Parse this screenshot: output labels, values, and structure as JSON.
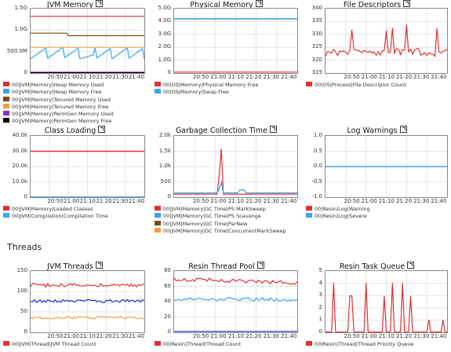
{
  "section_title": "Threads",
  "colors": {
    "red": "#e03131",
    "blue": "#38a6e8",
    "darkblue": "#1f25d6",
    "brown": "#7a4a12",
    "orange": "#f0a040",
    "purple": "#8b2fc4",
    "black": "#000000"
  },
  "icons": {
    "popout": "popout-icon"
  },
  "chart_data": [
    {
      "type": "line",
      "title": "JVM Memory",
      "y_ticks": [
        "1.5G",
        "1.0G",
        "500.0M",
        "0"
      ],
      "x_ticks": [
        "20:50",
        "21:00",
        "21:10",
        "21:20",
        "21:30",
        "21:40"
      ],
      "legend": [
        "00|JVM|Memory|Heap Memory Used",
        "00|JVM|Memory|Heap Memory Free",
        "00|JVM|Memory|Tenured Memory Used",
        "00|JVM|Memory|Tenured Memory Free",
        "00|JVM|Memory|PermGen Memory Used",
        "00|JVM|Memory|PermGen Memory Free"
      ]
    },
    {
      "type": "line",
      "title": "Physical Memory",
      "y_ticks": [
        "5.0G",
        "4.0G",
        "3.0G",
        "2.0G",
        "1.0G",
        "0"
      ],
      "x_ticks": [
        "20:50",
        "21:00",
        "21:10",
        "21:20",
        "21:30",
        "21:40"
      ],
      "legend": [
        "00|OS|Memory|Physical Memory Free",
        "00|OS|Memory|Swap Free"
      ]
    },
    {
      "type": "line",
      "title": "File Descriptors",
      "y_ticks": [
        "340",
        "335",
        "330",
        "325",
        "320",
        "315"
      ],
      "x_ticks": [
        "20:50",
        "21:00",
        "21:10",
        "21:20",
        "21:30",
        "21:40"
      ],
      "legend": [
        "00|OS|Process|File Descriptor Count"
      ]
    },
    {
      "type": "line",
      "title": "Class Loading",
      "y_ticks": [
        "40.0k",
        "30.0k",
        "20.0k",
        "10.0k",
        "0"
      ],
      "x_ticks": [
        "20:50",
        "21:00",
        "21:10",
        "21:20",
        "21:30",
        "21:40"
      ],
      "legend": [
        "00|JVM|Memory|Loaded Classes",
        "00|JVM|Compilation|Compilation Time"
      ]
    },
    {
      "type": "line",
      "title": "Garbage Collection Time",
      "y_ticks": [
        "2.0k",
        "1.5k",
        "1.0k",
        "500",
        "0"
      ],
      "x_ticks": [
        "20:50",
        "21:00",
        "21:10",
        "21:20",
        "21:30",
        "21:40"
      ],
      "legend": [
        "00|JVM|Memory|GC Time|PS MarkSweep",
        "00|JVM|Memory|GC Time|PS Scavenge",
        "00|JVM|Memory|GC Time|ParNew",
        "00|JVM|Memory|GC Time|ConcurrentMarkSweep"
      ]
    },
    {
      "type": "line",
      "title": "Log Warnings",
      "y_ticks": [
        "1.0",
        "0.5",
        "0.0",
        "-0.5",
        "-1.0"
      ],
      "x_ticks": [
        "20:50",
        "21:00",
        "21:10",
        "21:20",
        "21:30",
        "21:40"
      ],
      "legend": [
        "00|Resin|Log|Warning",
        "00|Resin|Log|Severe"
      ]
    },
    {
      "type": "line",
      "title": "JVM Threads",
      "y_ticks": [
        "150",
        "100",
        "50",
        "0"
      ],
      "x_ticks": [
        "20:50",
        "21:00",
        "21:10",
        "21:20",
        "21:30",
        "21:40"
      ],
      "legend": [
        "00|JVM|Thread|JVM Thread Count"
      ]
    },
    {
      "type": "line",
      "title": "Resin Thread Pool",
      "y_ticks": [
        "80",
        "60",
        "40",
        "20",
        "0"
      ],
      "x_ticks": [
        "20:50",
        "21:00",
        "21:10",
        "21:20",
        "21:30",
        "21:40"
      ],
      "legend": [
        "00|Resin|Thread|Thread Count"
      ]
    },
    {
      "type": "line",
      "title": "Resin Task Queue",
      "y_ticks": [
        "5",
        "4",
        "3",
        "2",
        "1",
        "0"
      ],
      "x_ticks": [
        "20:50",
        "21:00",
        "21:10",
        "21:20",
        "21:30",
        "21:40"
      ],
      "legend": [
        "00|Resin|Thread|Thread Priority Queue"
      ]
    }
  ]
}
